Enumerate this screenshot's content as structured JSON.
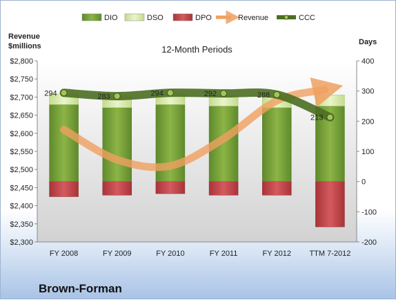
{
  "chart_data": {
    "type": "bar",
    "title": "12-Month Periods",
    "company": "Brown-Forman",
    "y_left_label_line1": "Revenue",
    "y_left_label_line2": "$millions",
    "y_right_label": "Days",
    "categories": [
      "FY 2008",
      "FY 2009",
      "FY 2010",
      "FY 2011",
      "FY 2012",
      "TTM 7-2012"
    ],
    "y_left": {
      "min": 2300,
      "max": 2800,
      "step": 50
    },
    "y_right": {
      "min": -200,
      "max": 400,
      "step": 100
    },
    "legend": {
      "position": "top",
      "items": [
        {
          "label": "DIO",
          "type": "bar",
          "color": "#77a03a"
        },
        {
          "label": "DSO",
          "type": "bar",
          "color": "#d6e8a8"
        },
        {
          "label": "DPO",
          "type": "bar",
          "color": "#c0454a"
        },
        {
          "label": "Revenue",
          "type": "arrow",
          "color": "#f0a060"
        },
        {
          "label": "CCC",
          "type": "line",
          "color": "#4b6e22"
        }
      ]
    },
    "series": [
      {
        "name": "DIO",
        "axis": "days",
        "values": [
          255,
          245,
          255,
          250,
          245,
          250
        ]
      },
      {
        "name": "DSO",
        "axis": "days",
        "values": [
          35,
          35,
          35,
          35,
          35,
          37
        ]
      },
      {
        "name": "DPO",
        "axis": "days",
        "values": [
          -50,
          -45,
          -40,
          -45,
          -45,
          -150
        ]
      },
      {
        "name": "Revenue",
        "axis": "revenue",
        "values": [
          2610,
          2527,
          2510,
          2585,
          2690,
          2720
        ]
      },
      {
        "name": "CCC",
        "axis": "days",
        "values": [
          294,
          283,
          294,
          292,
          288,
          213
        ]
      }
    ],
    "ccc_labels": [
      "294",
      "283",
      "294",
      "292",
      "288",
      "213"
    ]
  }
}
